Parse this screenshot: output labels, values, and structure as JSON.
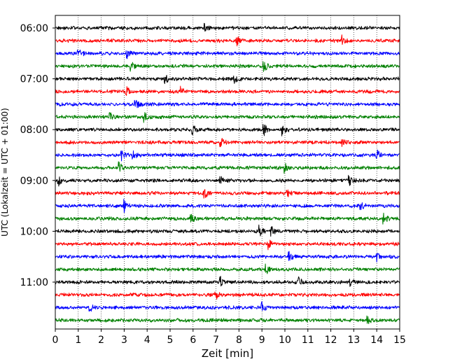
{
  "chart_data": {
    "type": "line",
    "title": "",
    "xlabel": "Zeit  [min]",
    "ylabel": "UTC (Lokalzeit = UTC + 01:00)",
    "xlim": [
      0,
      15
    ],
    "x_ticks": [
      "0",
      "1",
      "2",
      "3",
      "4",
      "5",
      "6",
      "7",
      "8",
      "9",
      "10",
      "11",
      "12",
      "13",
      "14",
      "15"
    ],
    "y_ticks": [
      {
        "label": "06:00",
        "minutes_after_start": 0
      },
      {
        "label": "07:00",
        "minutes_after_start": 60
      },
      {
        "label": "08:00",
        "minutes_after_start": 120
      },
      {
        "label": "09:00",
        "minutes_after_start": 180
      },
      {
        "label": "10:00",
        "minutes_after_start": 240
      },
      {
        "label": "11:00",
        "minutes_after_start": 300
      }
    ],
    "grid": {
      "vertical": true,
      "horizontal": false
    },
    "colors": [
      "#000000",
      "#ff0000",
      "#0000ff",
      "#008000"
    ],
    "traces": [
      {
        "start": "06:00",
        "color": "#000000",
        "events": [
          6.5
        ]
      },
      {
        "start": "06:15",
        "color": "#ff0000",
        "events": [
          7.9,
          12.5
        ]
      },
      {
        "start": "06:30",
        "color": "#0000ff",
        "events": [
          1.0,
          3.1
        ]
      },
      {
        "start": "06:45",
        "color": "#008000",
        "events": [
          3.3,
          9.1
        ]
      },
      {
        "start": "07:00",
        "color": "#000000",
        "events": [
          4.8,
          7.8
        ]
      },
      {
        "start": "07:15",
        "color": "#ff0000",
        "events": [
          3.1,
          5.5
        ]
      },
      {
        "start": "07:30",
        "color": "#0000ff",
        "events": [
          3.5
        ]
      },
      {
        "start": "07:45",
        "color": "#008000",
        "events": [
          3.9,
          2.4
        ]
      },
      {
        "start": "08:00",
        "color": "#000000",
        "events": [
          6.0,
          9.1,
          9.9
        ]
      },
      {
        "start": "08:15",
        "color": "#ff0000",
        "events": [
          7.2,
          12.5
        ]
      },
      {
        "start": "08:30",
        "color": "#0000ff",
        "events": [
          2.9,
          3.4,
          14.0
        ]
      },
      {
        "start": "08:45",
        "color": "#008000",
        "events": [
          2.8,
          10.0
        ]
      },
      {
        "start": "09:00",
        "color": "#000000",
        "events": [
          0.15,
          7.2,
          12.8
        ]
      },
      {
        "start": "09:15",
        "color": "#ff0000",
        "events": [
          6.5,
          10.1
        ]
      },
      {
        "start": "09:30",
        "color": "#0000ff",
        "events": [
          3.0,
          13.3
        ]
      },
      {
        "start": "09:45",
        "color": "#008000",
        "events": [
          5.9,
          14.3
        ]
      },
      {
        "start": "10:00",
        "color": "#000000",
        "events": [
          8.9,
          9.4
        ]
      },
      {
        "start": "10:15",
        "color": "#ff0000",
        "events": [
          9.3
        ]
      },
      {
        "start": "10:30",
        "color": "#0000ff",
        "events": [
          10.2,
          14.0
        ]
      },
      {
        "start": "10:45",
        "color": "#008000",
        "events": [
          9.2
        ]
      },
      {
        "start": "11:00",
        "color": "#000000",
        "events": [
          7.2,
          10.6,
          12.8
        ]
      },
      {
        "start": "11:15",
        "color": "#ff0000",
        "events": [
          7.0
        ]
      },
      {
        "start": "11:30",
        "color": "#0000ff",
        "events": [
          1.5,
          9.0
        ]
      },
      {
        "start": "11:45",
        "color": "#008000",
        "events": [
          13.6
        ]
      }
    ]
  }
}
